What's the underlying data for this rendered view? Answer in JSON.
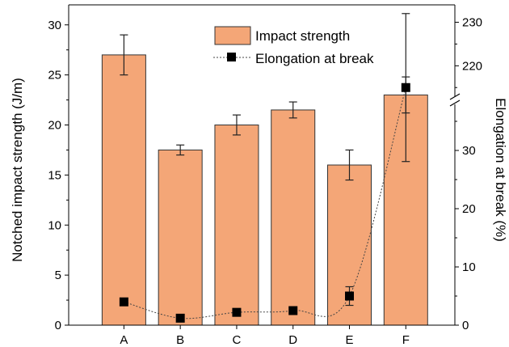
{
  "chart_data": {
    "type": "bar",
    "categories": [
      "A",
      "B",
      "C",
      "D",
      "E",
      "F"
    ],
    "series": [
      {
        "name": "Impact strength",
        "type": "bar",
        "axis": "left",
        "values": [
          27.0,
          17.5,
          20.0,
          21.5,
          16.0,
          23.0
        ],
        "errors": [
          2.0,
          0.5,
          1.0,
          0.8,
          1.5,
          1.8
        ],
        "color": "#f4a677"
      },
      {
        "name": "Elongation at break",
        "type": "line",
        "axis": "right",
        "values": [
          4.0,
          1.2,
          2.2,
          2.5,
          5.0,
          215.0
        ],
        "errors": [
          0.0,
          0.0,
          0.0,
          0.0,
          1.6,
          17.0
        ],
        "color": "#000000"
      }
    ],
    "xlabel": "",
    "ylabel": "Notched impact strength (J/m)",
    "y2label": "Elongation at break (%)",
    "ylim": [
      0,
      32
    ],
    "y2lim": [
      0,
      234
    ],
    "y2_break": [
      40,
      213
    ],
    "yticks": [
      0,
      5,
      10,
      15,
      20,
      25,
      30
    ],
    "y2ticks_lower": [
      0,
      10,
      20,
      30
    ],
    "y2ticks_upper": [
      220,
      230
    ],
    "legend_position": "top-right",
    "grid": false
  }
}
